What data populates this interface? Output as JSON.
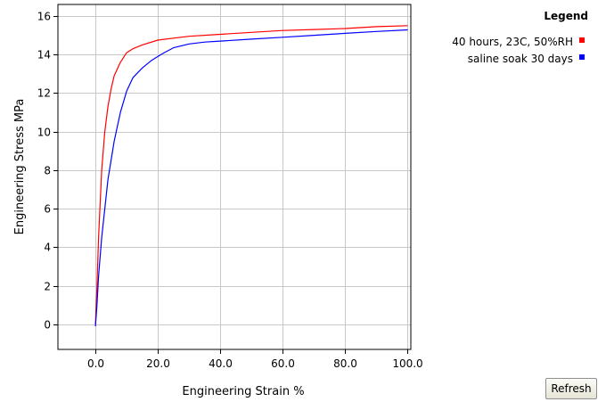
{
  "chart_data": {
    "type": "line",
    "xlabel": "Engineering Strain  %",
    "ylabel": "Engineering Stress  MPa",
    "xlim": [
      -12,
      101
    ],
    "ylim": [
      -1.3,
      16.6
    ],
    "x_ticks": [
      0,
      20,
      40,
      60,
      80,
      100
    ],
    "x_tick_labels": [
      "0.0",
      "20.0",
      "40.0",
      "60.0",
      "80.0",
      "100.0"
    ],
    "y_ticks": [
      0,
      2,
      4,
      6,
      8,
      10,
      12,
      14,
      16
    ],
    "y_tick_labels": [
      "0",
      "2",
      "4",
      "6",
      "8",
      "10",
      "12",
      "14",
      "16"
    ],
    "grid": true,
    "legend": {
      "title": "Legend",
      "placement": "top-right"
    },
    "series": [
      {
        "name": "40 hours, 23C, 50%RH",
        "color": "#ff0000",
        "points": [
          [
            0,
            0
          ],
          [
            0.5,
            2
          ],
          [
            1,
            4.5
          ],
          [
            2,
            8
          ],
          [
            3,
            10
          ],
          [
            4,
            11.3
          ],
          [
            5,
            12.2
          ],
          [
            6,
            12.9
          ],
          [
            8,
            13.6
          ],
          [
            10,
            14.1
          ],
          [
            12,
            14.3
          ],
          [
            15,
            14.5
          ],
          [
            20,
            14.75
          ],
          [
            25,
            14.85
          ],
          [
            30,
            14.95
          ],
          [
            40,
            15.05
          ],
          [
            50,
            15.15
          ],
          [
            60,
            15.25
          ],
          [
            70,
            15.3
          ],
          [
            80,
            15.35
          ],
          [
            90,
            15.45
          ],
          [
            100,
            15.5
          ]
        ]
      },
      {
        "name": "saline soak 30 days",
        "color": "#0000ff",
        "points": [
          [
            0,
            -0.1
          ],
          [
            0.5,
            1
          ],
          [
            1,
            2.5
          ],
          [
            2,
            4.5
          ],
          [
            3,
            6
          ],
          [
            4,
            7.5
          ],
          [
            5,
            8.5
          ],
          [
            6,
            9.5
          ],
          [
            8,
            11
          ],
          [
            10,
            12.1
          ],
          [
            12,
            12.8
          ],
          [
            15,
            13.3
          ],
          [
            18,
            13.7
          ],
          [
            20,
            13.9
          ],
          [
            22,
            14.1
          ],
          [
            25,
            14.35
          ],
          [
            30,
            14.55
          ],
          [
            35,
            14.65
          ],
          [
            40,
            14.7
          ],
          [
            50,
            14.8
          ],
          [
            60,
            14.9
          ],
          [
            70,
            15
          ],
          [
            80,
            15.1
          ],
          [
            90,
            15.2
          ],
          [
            100,
            15.28
          ]
        ]
      }
    ]
  },
  "controls": {
    "refresh_label": "Refresh"
  }
}
